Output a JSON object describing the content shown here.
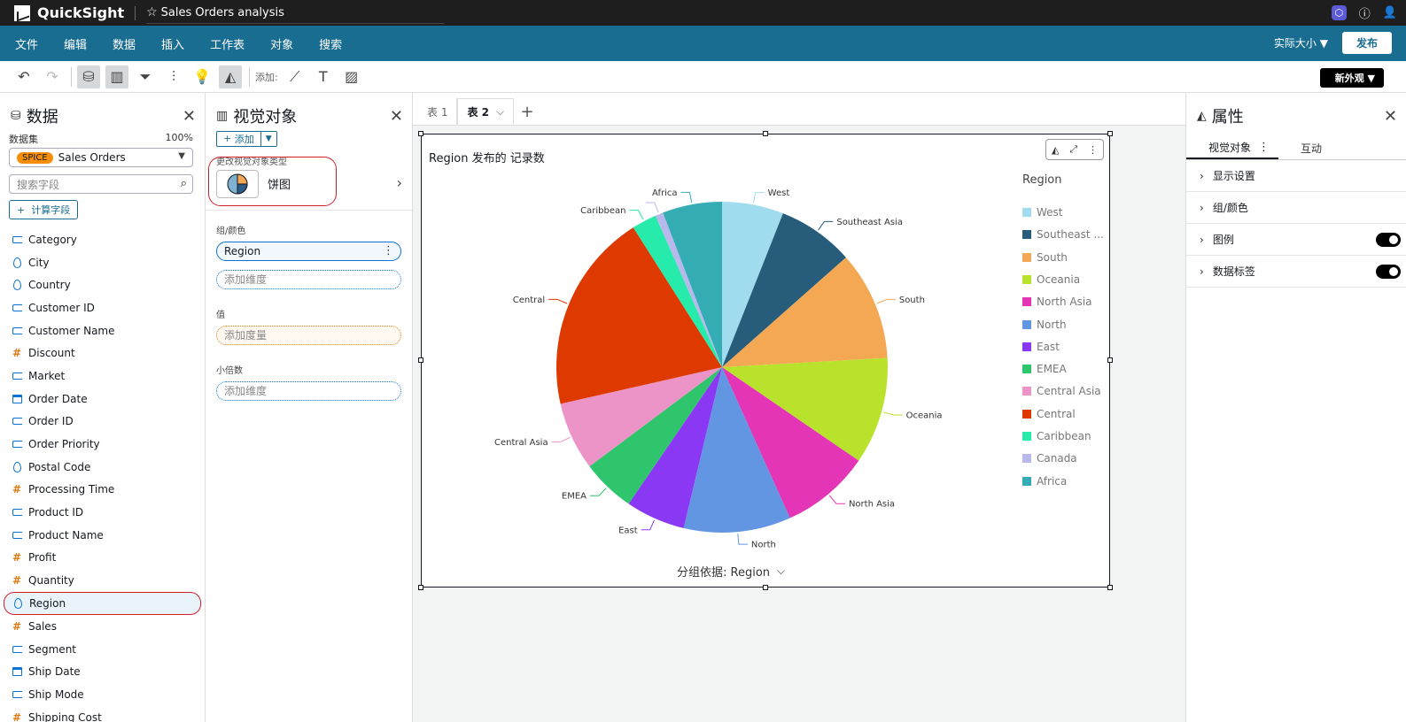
{
  "app": {
    "name": "QuickSight",
    "analysis_title": "Sales Orders analysis"
  },
  "menu": {
    "items": [
      "文件",
      "编辑",
      "数据",
      "插入",
      "工作表",
      "对象",
      "搜索"
    ],
    "zoom_label": "实际大小",
    "publish_label": "发布"
  },
  "toolbar": {
    "add_label": "添加:",
    "new_look_label": "新外观"
  },
  "data_panel": {
    "title": "数据",
    "dataset_label": "数据集",
    "dataset_percent": "100%",
    "spice_label": "SPICE",
    "dataset_name": "Sales Orders",
    "search_placeholder": "搜索字段",
    "calc_field_label": "计算字段",
    "fields": [
      {
        "name": "Category",
        "type": "dim"
      },
      {
        "name": "City",
        "type": "geo"
      },
      {
        "name": "Country",
        "type": "geo"
      },
      {
        "name": "Customer ID",
        "type": "dim"
      },
      {
        "name": "Customer Name",
        "type": "dim"
      },
      {
        "name": "Discount",
        "type": "measure"
      },
      {
        "name": "Market",
        "type": "dim"
      },
      {
        "name": "Order Date",
        "type": "date"
      },
      {
        "name": "Order ID",
        "type": "dim"
      },
      {
        "name": "Order Priority",
        "type": "dim"
      },
      {
        "name": "Postal Code",
        "type": "geo"
      },
      {
        "name": "Processing Time",
        "type": "measure"
      },
      {
        "name": "Product ID",
        "type": "dim"
      },
      {
        "name": "Product Name",
        "type": "dim"
      },
      {
        "name": "Profit",
        "type": "measure"
      },
      {
        "name": "Quantity",
        "type": "measure"
      },
      {
        "name": "Region",
        "type": "geo",
        "selected": true
      },
      {
        "name": "Sales",
        "type": "measure"
      },
      {
        "name": "Segment",
        "type": "dim"
      },
      {
        "name": "Ship Date",
        "type": "date"
      },
      {
        "name": "Ship Mode",
        "type": "dim"
      },
      {
        "name": "Shipping Cost",
        "type": "measure"
      }
    ]
  },
  "visuals_panel": {
    "title": "视觉对象",
    "add_label": "添加",
    "change_type_label": "更改视觉对象类型",
    "type_name": "饼图",
    "group_color_label": "组/颜色",
    "group_field": "Region",
    "add_dimension_placeholder": "添加维度",
    "value_label": "值",
    "add_measure_placeholder": "添加度量",
    "small_multiples_label": "小倍数",
    "small_multiples_placeholder": "添加维度"
  },
  "sheets": {
    "tabs": [
      "表 1",
      "表 2"
    ],
    "active_index": 1
  },
  "visual": {
    "title": "Region 发布的 记录数",
    "group_by_label": "分组依据: Region"
  },
  "colors": {
    "accent": "#196d91",
    "topbar": "#1e1e1e",
    "highlight_ring": "#d01f2c"
  },
  "chart_data": {
    "type": "pie",
    "title": "Region 发布的 记录数",
    "legend_title": "Region",
    "legend_position": "right",
    "categories": [
      "West",
      "Southeast Asia",
      "South",
      "Oceania",
      "North Asia",
      "North",
      "East",
      "EMEA",
      "Central Asia",
      "Central",
      "Caribbean",
      "Canada",
      "Africa"
    ],
    "legend_labels": [
      "West",
      "Southeast ...",
      "South",
      "Oceania",
      "North Asia",
      "North",
      "East",
      "EMEA",
      "Central Asia",
      "Central",
      "Caribbean",
      "Canada",
      "Africa"
    ],
    "values": [
      6.2,
      7.7,
      11.0,
      10.8,
      9.0,
      10.8,
      6.0,
      5.4,
      6.9,
      20.2,
      2.5,
      0.8,
      6.0
    ],
    "colors": [
      "#a0dcee",
      "#275d7a",
      "#f4a853",
      "#b9e22c",
      "#e335b6",
      "#6296e2",
      "#8b38f5",
      "#2fc56c",
      "#ec93c8",
      "#de3a00",
      "#26ebab",
      "#b9b8ec",
      "#33acb3"
    ]
  }
}
